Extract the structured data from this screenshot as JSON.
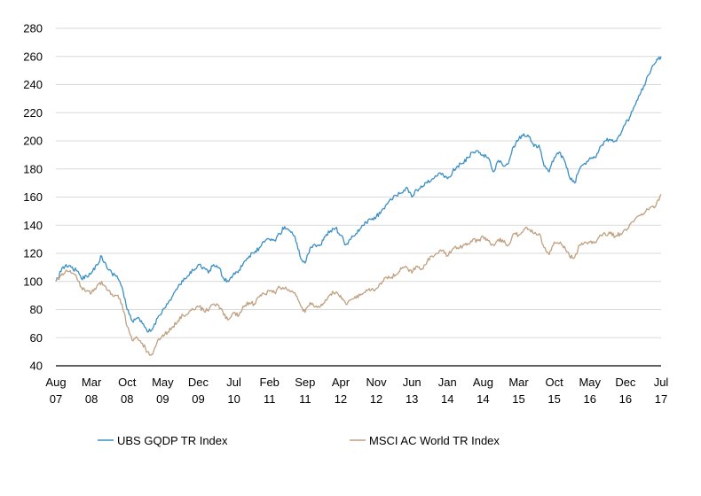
{
  "chart_data": {
    "type": "line",
    "title": "",
    "xlabel": "",
    "ylabel": "",
    "ylim": [
      40,
      280
    ],
    "yticks": [
      40,
      60,
      80,
      100,
      120,
      140,
      160,
      180,
      200,
      220,
      240,
      260,
      280
    ],
    "xlim": [
      "2007-08",
      "2017-07"
    ],
    "xticks": [
      {
        "date": "2007-08",
        "line1": "Aug",
        "line2": "07"
      },
      {
        "date": "2008-03",
        "line1": "Mar",
        "line2": "08"
      },
      {
        "date": "2008-10",
        "line1": "Oct",
        "line2": "08"
      },
      {
        "date": "2009-05",
        "line1": "May",
        "line2": "09"
      },
      {
        "date": "2009-12",
        "line1": "Dec",
        "line2": "09"
      },
      {
        "date": "2010-07",
        "line1": "Jul",
        "line2": "10"
      },
      {
        "date": "2011-02",
        "line1": "Feb",
        "line2": "11"
      },
      {
        "date": "2011-09",
        "line1": "Sep",
        "line2": "11"
      },
      {
        "date": "2012-04",
        "line1": "Apr",
        "line2": "12"
      },
      {
        "date": "2012-11",
        "line1": "Nov",
        "line2": "12"
      },
      {
        "date": "2013-06",
        "line1": "Jun",
        "line2": "13"
      },
      {
        "date": "2014-01",
        "line1": "Jan",
        "line2": "14"
      },
      {
        "date": "2014-08",
        "line1": "Aug",
        "line2": "14"
      },
      {
        "date": "2015-03",
        "line1": "Mar",
        "line2": "15"
      },
      {
        "date": "2015-10",
        "line1": "Oct",
        "line2": "15"
      },
      {
        "date": "2016-05",
        "line1": "May",
        "line2": "16"
      },
      {
        "date": "2016-12",
        "line1": "Dec",
        "line2": "16"
      },
      {
        "date": "2017-07",
        "line1": "Jul",
        "line2": "17"
      }
    ],
    "grid": "horizontal",
    "legend": "bottom",
    "series": [
      {
        "name": "UBS GQDP TR Index",
        "color": "#3a8fc4",
        "points": [
          [
            "2007-08",
            100
          ],
          [
            "2007-09",
            107
          ],
          [
            "2007-10",
            112
          ],
          [
            "2007-11",
            110
          ],
          [
            "2007-12",
            108
          ],
          [
            "2008-01",
            102
          ],
          [
            "2008-02",
            104
          ],
          [
            "2008-03",
            106
          ],
          [
            "2008-04",
            112
          ],
          [
            "2008-05",
            118
          ],
          [
            "2008-06",
            110
          ],
          [
            "2008-07",
            106
          ],
          [
            "2008-08",
            104
          ],
          [
            "2008-09",
            96
          ],
          [
            "2008-10",
            80
          ],
          [
            "2008-11",
            72
          ],
          [
            "2008-12",
            74
          ],
          [
            "2009-01",
            70
          ],
          [
            "2009-02",
            64
          ],
          [
            "2009-03",
            66
          ],
          [
            "2009-04",
            74
          ],
          [
            "2009-05",
            80
          ],
          [
            "2009-06",
            84
          ],
          [
            "2009-07",
            90
          ],
          [
            "2009-08",
            96
          ],
          [
            "2009-09",
            100
          ],
          [
            "2009-10",
            104
          ],
          [
            "2009-11",
            108
          ],
          [
            "2009-12",
            112
          ],
          [
            "2010-01",
            110
          ],
          [
            "2010-02",
            106
          ],
          [
            "2010-03",
            112
          ],
          [
            "2010-04",
            110
          ],
          [
            "2010-05",
            102
          ],
          [
            "2010-06",
            100
          ],
          [
            "2010-07",
            106
          ],
          [
            "2010-08",
            108
          ],
          [
            "2010-09",
            114
          ],
          [
            "2010-10",
            118
          ],
          [
            "2010-11",
            120
          ],
          [
            "2010-12",
            124
          ],
          [
            "2011-01",
            128
          ],
          [
            "2011-02",
            130
          ],
          [
            "2011-03",
            129
          ],
          [
            "2011-04",
            134
          ],
          [
            "2011-05",
            139
          ],
          [
            "2011-06",
            136
          ],
          [
            "2011-07",
            132
          ],
          [
            "2011-08",
            118
          ],
          [
            "2011-09",
            113
          ],
          [
            "2011-10",
            124
          ],
          [
            "2011-11",
            126
          ],
          [
            "2011-12",
            126
          ],
          [
            "2012-01",
            132
          ],
          [
            "2012-02",
            136
          ],
          [
            "2012-03",
            138
          ],
          [
            "2012-04",
            133
          ],
          [
            "2012-05",
            126
          ],
          [
            "2012-06",
            130
          ],
          [
            "2012-07",
            134
          ],
          [
            "2012-08",
            138
          ],
          [
            "2012-09",
            142
          ],
          [
            "2012-10",
            144
          ],
          [
            "2012-11",
            146
          ],
          [
            "2012-12",
            150
          ],
          [
            "2013-01",
            155
          ],
          [
            "2013-02",
            158
          ],
          [
            "2013-03",
            161
          ],
          [
            "2013-04",
            163
          ],
          [
            "2013-05",
            167
          ],
          [
            "2013-06",
            160
          ],
          [
            "2013-07",
            165
          ],
          [
            "2013-08",
            167
          ],
          [
            "2013-09",
            170
          ],
          [
            "2013-10",
            173
          ],
          [
            "2013-11",
            175
          ],
          [
            "2013-12",
            177
          ],
          [
            "2014-01",
            173
          ],
          [
            "2014-02",
            178
          ],
          [
            "2014-03",
            182
          ],
          [
            "2014-04",
            184
          ],
          [
            "2014-05",
            188
          ],
          [
            "2014-06",
            192
          ],
          [
            "2014-07",
            193
          ],
          [
            "2014-08",
            190
          ],
          [
            "2014-09",
            188
          ],
          [
            "2014-10",
            178
          ],
          [
            "2014-11",
            186
          ],
          [
            "2014-12",
            182
          ],
          [
            "2015-01",
            184
          ],
          [
            "2015-02",
            196
          ],
          [
            "2015-03",
            201
          ],
          [
            "2015-04",
            205
          ],
          [
            "2015-05",
            203
          ],
          [
            "2015-06",
            196
          ],
          [
            "2015-07",
            197
          ],
          [
            "2015-08",
            182
          ],
          [
            "2015-09",
            178
          ],
          [
            "2015-10",
            188
          ],
          [
            "2015-11",
            192
          ],
          [
            "2015-12",
            186
          ],
          [
            "2016-01",
            174
          ],
          [
            "2016-02",
            170
          ],
          [
            "2016-03",
            180
          ],
          [
            "2016-04",
            184
          ],
          [
            "2016-05",
            188
          ],
          [
            "2016-06",
            188
          ],
          [
            "2016-07",
            196
          ],
          [
            "2016-08",
            200
          ],
          [
            "2016-09",
            201
          ],
          [
            "2016-10",
            200
          ],
          [
            "2016-11",
            204
          ],
          [
            "2016-12",
            212
          ],
          [
            "2017-01",
            218
          ],
          [
            "2017-02",
            226
          ],
          [
            "2017-03",
            234
          ],
          [
            "2017-04",
            242
          ],
          [
            "2017-05",
            250
          ],
          [
            "2017-06",
            256
          ],
          [
            "2017-07",
            260
          ]
        ]
      },
      {
        "name": "MSCI AC World TR Index",
        "color": "#c0a080",
        "points": [
          [
            "2007-08",
            100
          ],
          [
            "2007-09",
            104
          ],
          [
            "2007-10",
            108
          ],
          [
            "2007-11",
            106
          ],
          [
            "2007-12",
            104
          ],
          [
            "2008-01",
            96
          ],
          [
            "2008-02",
            93
          ],
          [
            "2008-03",
            92
          ],
          [
            "2008-04",
            96
          ],
          [
            "2008-05",
            100
          ],
          [
            "2008-06",
            94
          ],
          [
            "2008-07",
            91
          ],
          [
            "2008-08",
            90
          ],
          [
            "2008-09",
            84
          ],
          [
            "2008-10",
            68
          ],
          [
            "2008-11",
            58
          ],
          [
            "2008-12",
            60
          ],
          [
            "2009-01",
            56
          ],
          [
            "2009-02",
            50
          ],
          [
            "2009-03",
            48
          ],
          [
            "2009-04",
            58
          ],
          [
            "2009-05",
            62
          ],
          [
            "2009-06",
            64
          ],
          [
            "2009-07",
            68
          ],
          [
            "2009-08",
            72
          ],
          [
            "2009-09",
            76
          ],
          [
            "2009-10",
            77
          ],
          [
            "2009-11",
            80
          ],
          [
            "2009-12",
            82
          ],
          [
            "2010-01",
            80
          ],
          [
            "2010-02",
            79
          ],
          [
            "2010-03",
            84
          ],
          [
            "2010-04",
            83
          ],
          [
            "2010-05",
            76
          ],
          [
            "2010-06",
            73
          ],
          [
            "2010-07",
            78
          ],
          [
            "2010-08",
            76
          ],
          [
            "2010-09",
            82
          ],
          [
            "2010-10",
            85
          ],
          [
            "2010-11",
            84
          ],
          [
            "2010-12",
            89
          ],
          [
            "2011-01",
            91
          ],
          [
            "2011-02",
            93
          ],
          [
            "2011-03",
            92
          ],
          [
            "2011-04",
            96
          ],
          [
            "2011-05",
            95
          ],
          [
            "2011-06",
            93
          ],
          [
            "2011-07",
            92
          ],
          [
            "2011-08",
            84
          ],
          [
            "2011-09",
            78
          ],
          [
            "2011-10",
            85
          ],
          [
            "2011-11",
            82
          ],
          [
            "2011-12",
            82
          ],
          [
            "2012-01",
            87
          ],
          [
            "2012-02",
            91
          ],
          [
            "2012-03",
            92
          ],
          [
            "2012-04",
            90
          ],
          [
            "2012-05",
            84
          ],
          [
            "2012-06",
            87
          ],
          [
            "2012-07",
            88
          ],
          [
            "2012-08",
            91
          ],
          [
            "2012-09",
            94
          ],
          [
            "2012-10",
            94
          ],
          [
            "2012-11",
            95
          ],
          [
            "2012-12",
            98
          ],
          [
            "2013-01",
            103
          ],
          [
            "2013-02",
            103
          ],
          [
            "2013-03",
            105
          ],
          [
            "2013-04",
            109
          ],
          [
            "2013-05",
            110
          ],
          [
            "2013-06",
            106
          ],
          [
            "2013-07",
            111
          ],
          [
            "2013-08",
            109
          ],
          [
            "2013-09",
            114
          ],
          [
            "2013-10",
            118
          ],
          [
            "2013-11",
            120
          ],
          [
            "2013-12",
            122
          ],
          [
            "2014-01",
            118
          ],
          [
            "2014-02",
            123
          ],
          [
            "2014-03",
            124
          ],
          [
            "2014-04",
            125
          ],
          [
            "2014-05",
            127
          ],
          [
            "2014-06",
            130
          ],
          [
            "2014-07",
            129
          ],
          [
            "2014-08",
            132
          ],
          [
            "2014-09",
            129
          ],
          [
            "2014-10",
            126
          ],
          [
            "2014-11",
            130
          ],
          [
            "2014-12",
            128
          ],
          [
            "2015-01",
            126
          ],
          [
            "2015-02",
            134
          ],
          [
            "2015-03",
            133
          ],
          [
            "2015-04",
            137
          ],
          [
            "2015-05",
            137
          ],
          [
            "2015-06",
            134
          ],
          [
            "2015-07",
            134
          ],
          [
            "2015-08",
            124
          ],
          [
            "2015-09",
            119
          ],
          [
            "2015-10",
            128
          ],
          [
            "2015-11",
            127
          ],
          [
            "2015-12",
            125
          ],
          [
            "2016-01",
            118
          ],
          [
            "2016-02",
            117
          ],
          [
            "2016-03",
            126
          ],
          [
            "2016-04",
            128
          ],
          [
            "2016-05",
            128
          ],
          [
            "2016-06",
            128
          ],
          [
            "2016-07",
            133
          ],
          [
            "2016-08",
            134
          ],
          [
            "2016-09",
            134
          ],
          [
            "2016-10",
            132
          ],
          [
            "2016-11",
            134
          ],
          [
            "2016-12",
            137
          ],
          [
            "2017-01",
            141
          ],
          [
            "2017-02",
            145
          ],
          [
            "2017-03",
            147
          ],
          [
            "2017-04",
            150
          ],
          [
            "2017-05",
            153
          ],
          [
            "2017-06",
            154
          ],
          [
            "2017-07",
            162
          ]
        ]
      }
    ]
  }
}
